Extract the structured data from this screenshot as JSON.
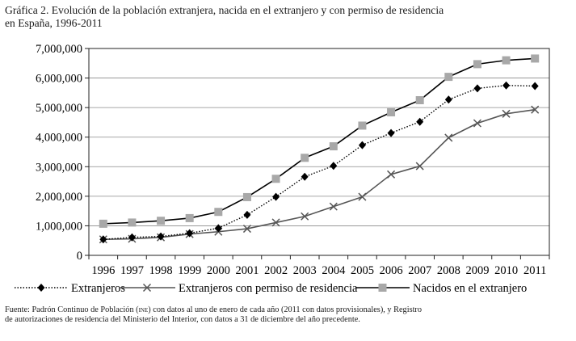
{
  "title": {
    "line1": "Gráfica 2. Evolución de la población extranjera, nacida en el extranjero y con permiso de residencia",
    "line2": "en España, 1996-2011"
  },
  "chart_data": {
    "type": "line",
    "title": "Gráfica 2. Evolución de la población extranjera, nacida en el extranjero y con permiso de residencia en España, 1996-2011",
    "xlabel": "",
    "ylabel": "",
    "ylim": [
      0,
      7000000
    ],
    "yticks": [
      0,
      1000000,
      2000000,
      3000000,
      4000000,
      5000000,
      6000000,
      7000000
    ],
    "ytick_labels": [
      "0",
      "1,000,000",
      "2,000,000",
      "3,000,000",
      "4,000,000",
      "5,000,000",
      "6,000,000",
      "7,000,000"
    ],
    "grid": "horizontal",
    "legend_position": "bottom",
    "categories": [
      "1996",
      "1997",
      "1998",
      "1999",
      "2000",
      "2001",
      "2002",
      "2003",
      "2004",
      "2005",
      "2006",
      "2007",
      "2008",
      "2009",
      "2010",
      "2011"
    ],
    "series": [
      {
        "name": "Extranjeros",
        "style": "dotted",
        "marker": "diamond",
        "color": "#000000",
        "values": [
          540000,
          610000,
          640000,
          750000,
          920000,
          1370000,
          1980000,
          2660000,
          3030000,
          3730000,
          4140000,
          4520000,
          5270000,
          5650000,
          5750000,
          5730000
        ]
      },
      {
        "name": "Extranjeros con permiso de residencia",
        "style": "solid",
        "marker": "x",
        "color": "#555555",
        "values": [
          540000,
          560000,
          610000,
          720000,
          800000,
          900000,
          1110000,
          1320000,
          1650000,
          1980000,
          2740000,
          3020000,
          3980000,
          4470000,
          4790000,
          4930000
        ]
      },
      {
        "name": "Nacidos en el extranjero",
        "style": "solid",
        "marker": "square",
        "color": "#000000",
        "marker_color": "#a8a8a8",
        "values": [
          1070000,
          1110000,
          1170000,
          1260000,
          1470000,
          1970000,
          2590000,
          3300000,
          3690000,
          4390000,
          4840000,
          5250000,
          6040000,
          6470000,
          6600000,
          6660000
        ]
      }
    ]
  },
  "source": {
    "prefix": "Fuente: Padrón Continuo de Población (",
    "abbr": "ine",
    "suffix": ") con datos al uno de enero de cada año (2011 con datos provisionales), y Registro",
    "line2": "de autorizaciones de residencia del Ministerio del Interior, con datos a 31 de diciembre del año precedente."
  }
}
